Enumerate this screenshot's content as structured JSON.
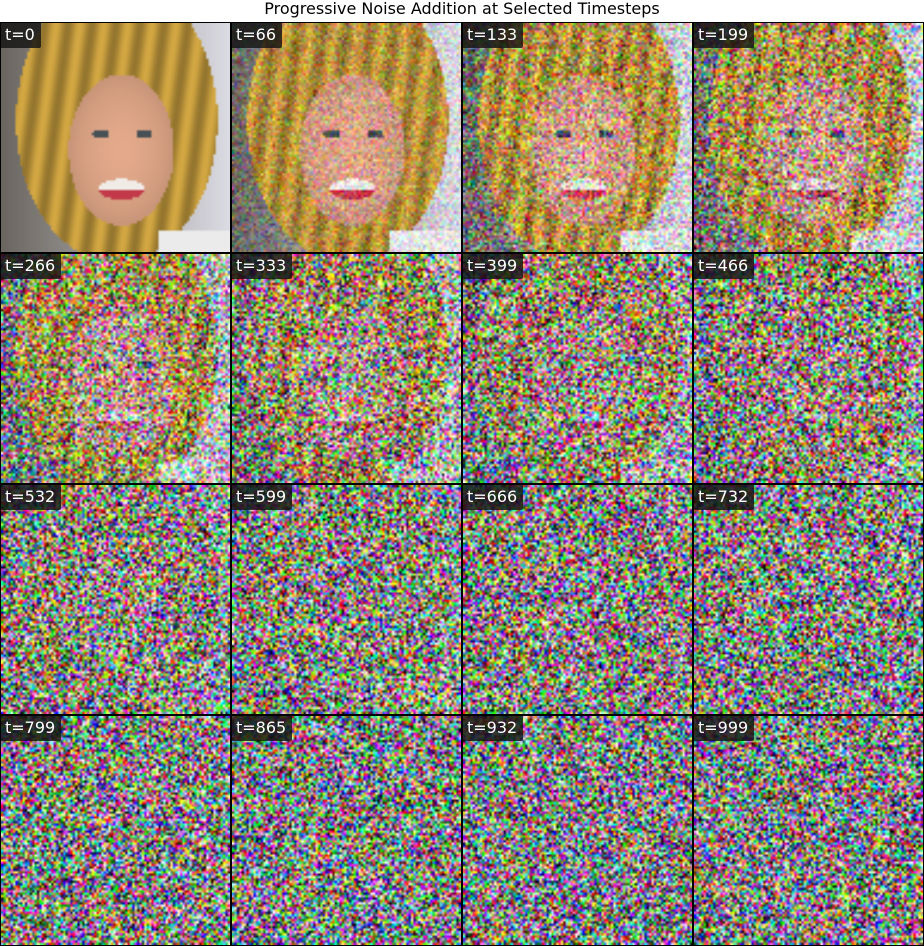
{
  "title": "Progressive Noise Addition at Selected Timesteps",
  "grid": {
    "rows": 4,
    "cols": 4
  },
  "panels": [
    {
      "label": "t=0",
      "t": 0
    },
    {
      "label": "t=66",
      "t": 66
    },
    {
      "label": "t=133",
      "t": 133
    },
    {
      "label": "t=199",
      "t": 199
    },
    {
      "label": "t=266",
      "t": 266
    },
    {
      "label": "t=333",
      "t": 333
    },
    {
      "label": "t=399",
      "t": 399
    },
    {
      "label": "t=466",
      "t": 466
    },
    {
      "label": "t=532",
      "t": 532
    },
    {
      "label": "t=599",
      "t": 599
    },
    {
      "label": "t=666",
      "t": 666
    },
    {
      "label": "t=732",
      "t": 732
    },
    {
      "label": "t=799",
      "t": 799
    },
    {
      "label": "t=865",
      "t": 865
    },
    {
      "label": "t=932",
      "t": 932
    },
    {
      "label": "t=999",
      "t": 999
    }
  ],
  "max_timestep": 999,
  "image_subject": "portrait of a smiling woman with long blonde hair",
  "colors": {
    "hair": "#d4a84a",
    "skin": "#e3a98a",
    "background_left": "#6b6660",
    "background_right": "#dcdce4",
    "lips": "#c23a4a",
    "label_bg": "#1e1e1e",
    "label_text": "#ffffff"
  }
}
